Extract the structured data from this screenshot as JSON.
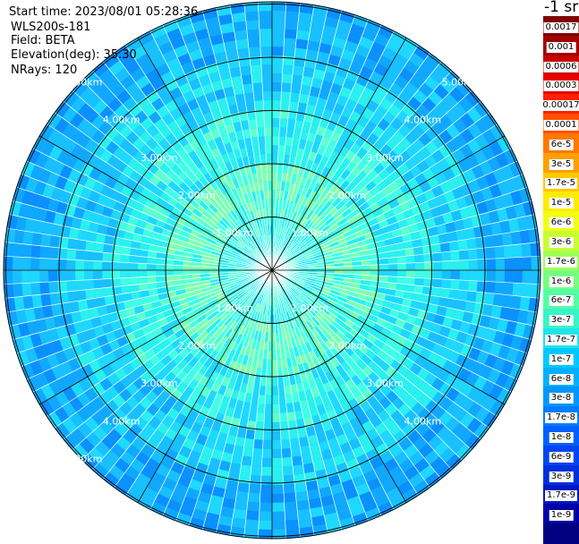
{
  "header": {
    "start_time": "Start time: 2023/08/01 05:28:36",
    "instrument": "WLS200s-181",
    "field": "Field: BETA",
    "elevation": "Elevation(deg): 35.30",
    "nrays": "NRays: 120"
  },
  "colorbar": {
    "unit_label": "-1 sr",
    "colors": [
      "#800000",
      "#a00000",
      "#c80000",
      "#e60000",
      "#ff2000",
      "#ff5000",
      "#ff7800",
      "#ff9f00",
      "#ffc800",
      "#ffec00",
      "#f2ff10",
      "#c8ff2e",
      "#9eff56",
      "#76ff7e",
      "#52ffa4",
      "#36f5c6",
      "#20e4ea",
      "#00c8ff",
      "#00b0ff",
      "#0096ff",
      "#007cff",
      "#0060ff",
      "#0046f0",
      "#0030dc",
      "#0018c4",
      "#0000a8",
      "#000080"
    ],
    "labels": [
      "0.0017",
      "0.001",
      "0.0006",
      "0.0003",
      "0.00017",
      "0.0001",
      "6e-5",
      "3e-5",
      "1.7e-5",
      "1e-5",
      "6e-6",
      "3e-6",
      "1.7e-6",
      "1e-6",
      "6e-7",
      "3e-7",
      "1.7e-7",
      "1e-7",
      "6e-8",
      "3e-8",
      "1.7e-8",
      "1e-8",
      "6e-9",
      "3e-9",
      "1.7e-9",
      "1e-9"
    ]
  },
  "chart_data": {
    "type": "heatmap",
    "projection": "polar",
    "field": "BETA",
    "nrays": 120,
    "range_rings": [
      "1.00km",
      "2.00km",
      "3.00km",
      "4.00km",
      "5.00km"
    ],
    "ring_labels_visible": [
      {
        "ring": "5.00km",
        "positions": [
          "upper-left",
          "lower-left",
          "upper-right"
        ]
      },
      {
        "ring": "4.00km",
        "positions": [
          "upper-left",
          "upper-right",
          "lower-left",
          "lower-right"
        ]
      },
      {
        "ring": "3.00km",
        "positions": [
          "upper-left",
          "upper-right",
          "lower-left",
          "lower-right"
        ]
      },
      {
        "ring": "2.00km",
        "positions": [
          "upper-left",
          "upper-right",
          "lower-left",
          "lower-right"
        ]
      },
      {
        "ring": "1.00km",
        "positions": [
          "upper-left",
          "upper-right",
          "lower-left",
          "lower-right"
        ]
      }
    ],
    "radial_spoke_interval_deg": 30,
    "max_range_km": 5.0,
    "pattern": "Higher backscatter (cyan/green) near center within ~2km, decreasing to blue at outer ranges"
  }
}
